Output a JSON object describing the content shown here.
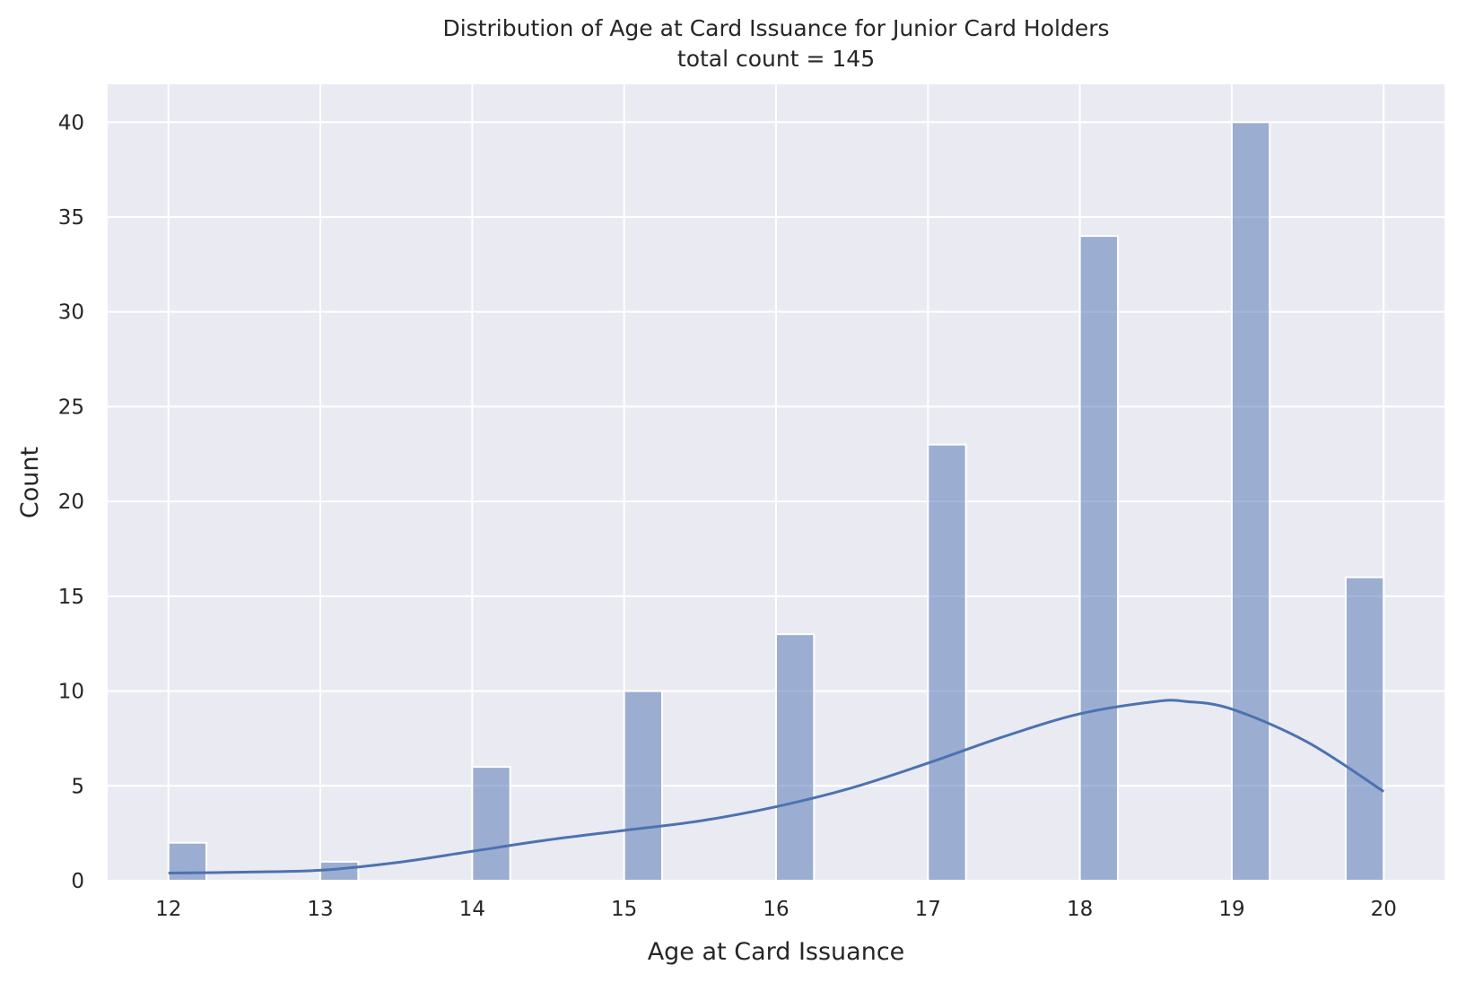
{
  "chart_data": {
    "type": "bar",
    "title": "Distribution of Age at Card Issuance for Junior Card Holders",
    "subtitle": "total count = 145",
    "xlabel": "Age at Card Issuance",
    "ylabel": "Count",
    "xlim": [
      11.6,
      20.4
    ],
    "ylim": [
      0,
      42
    ],
    "xticks": [
      12,
      13,
      14,
      15,
      16,
      17,
      18,
      19,
      20
    ],
    "yticks": [
      0,
      5,
      10,
      15,
      20,
      25,
      30,
      35,
      40
    ],
    "grid": true,
    "bin_width": 0.25,
    "bars": [
      {
        "x": 12,
        "count": 2
      },
      {
        "x": 13,
        "count": 1
      },
      {
        "x": 14,
        "count": 6
      },
      {
        "x": 15,
        "count": 10
      },
      {
        "x": 16,
        "count": 13
      },
      {
        "x": 17,
        "count": 23
      },
      {
        "x": 18,
        "count": 34
      },
      {
        "x": 19,
        "count": 40
      },
      {
        "x": 20,
        "count": 16
      }
    ],
    "kde": {
      "x": [
        12.0,
        12.5,
        13.0,
        13.5,
        14.0,
        14.5,
        15.0,
        15.5,
        16.0,
        16.5,
        17.0,
        17.5,
        18.0,
        18.5,
        18.7,
        19.0,
        19.5,
        20.0
      ],
      "y": [
        0.4,
        0.45,
        0.55,
        0.95,
        1.55,
        2.15,
        2.65,
        3.15,
        3.9,
        4.9,
        6.2,
        7.6,
        8.8,
        9.45,
        9.45,
        9.05,
        7.3,
        4.7
      ]
    },
    "colors": {
      "background": "#eaeaf2",
      "grid": "#ffffff",
      "bar_fill": "#4c72b0",
      "bar_opacity": 0.5,
      "bar_edge": "#ffffff",
      "kde_line": "#4c72b0"
    }
  }
}
